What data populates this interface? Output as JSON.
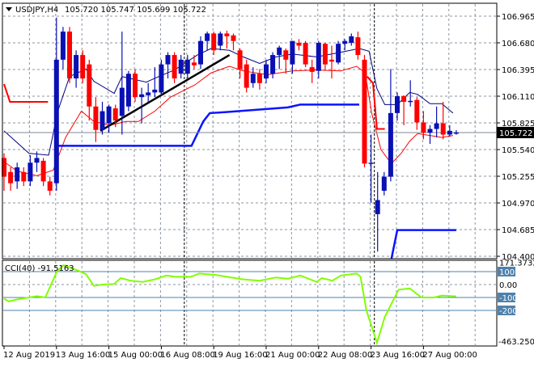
{
  "chart_data": {
    "type": "candlestick",
    "symbol_header": "USDJPY,H4",
    "ohlc_header": "105.720 105.747 105.699 105.722",
    "current_price": "105.722",
    "colors": {
      "bull": "#0a10b4",
      "bear": "#ff0000",
      "ma_upper": "#00007f",
      "ma_lower": "#ff0000",
      "support": "#0a14ff",
      "trendline": "#000000",
      "cci": "#80ff00",
      "level_box": "#4f81ad"
    },
    "price_axis": {
      "ticks": [
        "106.965",
        "106.680",
        "106.395",
        "106.110",
        "105.825",
        "105.540",
        "105.255",
        "104.970",
        "104.685",
        "104.400"
      ],
      "range": [
        104.37,
        107.1
      ]
    },
    "time_axis": {
      "ticks": [
        {
          "label": "12 Aug 2019",
          "bar": 0
        },
        {
          "label": "13 Aug 16:00",
          "bar": 8
        },
        {
          "label": "15 Aug 00:00",
          "bar": 16
        },
        {
          "label": "16 Aug 08:00",
          "bar": 24
        },
        {
          "label": "19 Aug 16:00",
          "bar": 32
        },
        {
          "label": "21 Aug 00:00",
          "bar": 40
        },
        {
          "label": "22 Aug 08:00",
          "bar": 48
        },
        {
          "label": "23 Aug 16:00",
          "bar": 56
        },
        {
          "label": "27 Aug 00:00",
          "bar": 64
        }
      ],
      "separators": [
        28,
        57
      ]
    },
    "candles": [
      [
        105.45,
        105.5,
        105.1,
        105.25
      ],
      [
        105.3,
        105.35,
        105.1,
        105.18
      ],
      [
        105.2,
        105.4,
        105.12,
        105.35
      ],
      [
        105.3,
        105.35,
        105.15,
        105.2
      ],
      [
        105.2,
        105.48,
        105.15,
        105.4
      ],
      [
        105.4,
        105.52,
        105.3,
        105.45
      ],
      [
        105.42,
        105.45,
        105.15,
        105.2
      ],
      [
        105.2,
        105.25,
        105.05,
        105.1
      ],
      [
        105.18,
        106.95,
        105.1,
        106.5
      ],
      [
        106.5,
        106.85,
        106.4,
        106.8
      ],
      [
        106.8,
        106.85,
        106.25,
        106.3
      ],
      [
        106.3,
        106.6,
        106.2,
        106.55
      ],
      [
        106.55,
        106.6,
        106.25,
        106.3
      ],
      [
        106.45,
        106.5,
        105.85,
        106.0
      ],
      [
        106.0,
        106.1,
        105.62,
        105.75
      ],
      [
        105.75,
        106.05,
        105.7,
        105.95
      ],
      [
        105.82,
        106.02,
        105.72,
        106.0
      ],
      [
        105.98,
        106.02,
        105.78,
        105.85
      ],
      [
        105.9,
        106.8,
        105.7,
        106.2
      ],
      [
        106.0,
        106.38,
        105.95,
        106.35
      ],
      [
        106.35,
        106.4,
        106.05,
        106.1
      ],
      [
        106.1,
        106.2,
        105.82,
        106.13
      ],
      [
        106.12,
        106.25,
        106.05,
        106.15
      ],
      [
        106.15,
        106.42,
        106.1,
        106.18
      ],
      [
        106.15,
        106.5,
        106.12,
        106.45
      ],
      [
        106.45,
        106.58,
        106.3,
        106.55
      ],
      [
        106.55,
        106.58,
        106.25,
        106.3
      ],
      [
        106.35,
        106.55,
        106.3,
        106.5
      ],
      [
        106.35,
        106.55,
        106.3,
        106.5
      ],
      [
        106.47,
        106.55,
        106.4,
        106.44
      ],
      [
        106.45,
        106.75,
        106.4,
        106.7
      ],
      [
        106.7,
        106.8,
        106.6,
        106.78
      ],
      [
        106.78,
        106.8,
        106.55,
        106.6
      ],
      [
        106.65,
        106.8,
        106.6,
        106.78
      ],
      [
        106.78,
        106.81,
        106.62,
        106.75
      ],
      [
        106.76,
        106.78,
        106.6,
        106.7
      ],
      [
        106.6,
        106.62,
        106.3,
        106.4
      ],
      [
        106.45,
        106.5,
        106.15,
        106.2
      ],
      [
        106.25,
        106.42,
        106.2,
        106.35
      ],
      [
        106.35,
        106.4,
        106.18,
        106.25
      ],
      [
        106.3,
        106.5,
        106.25,
        106.45
      ],
      [
        106.35,
        106.58,
        106.3,
        106.55
      ],
      [
        106.55,
        106.65,
        106.4,
        106.63
      ],
      [
        106.6,
        106.62,
        106.35,
        106.5
      ],
      [
        106.45,
        106.7,
        106.35,
        106.7
      ],
      [
        106.68,
        106.72,
        106.6,
        106.65
      ],
      [
        106.68,
        106.7,
        106.42,
        106.45
      ],
      [
        106.42,
        106.5,
        106.25,
        106.37
      ],
      [
        106.38,
        106.7,
        106.3,
        106.68
      ],
      [
        106.67,
        106.68,
        106.4,
        106.45
      ],
      [
        106.5,
        106.65,
        106.3,
        106.48
      ],
      [
        106.47,
        106.7,
        106.45,
        106.67
      ],
      [
        106.67,
        106.72,
        106.6,
        106.7
      ],
      [
        106.68,
        106.78,
        106.65,
        106.75
      ],
      [
        106.74,
        106.8,
        106.5,
        106.55
      ],
      [
        106.5,
        106.55,
        105.35,
        105.39
      ],
      [
        105.4,
        105.7,
        104.97,
        105.4
      ],
      [
        104.85,
        105.3,
        104.45,
        105.0
      ],
      [
        105.1,
        105.3,
        105.05,
        105.25
      ],
      [
        105.25,
        106.4,
        105.2,
        105.93
      ],
      [
        105.93,
        106.15,
        105.85,
        106.11
      ],
      [
        106.11,
        106.12,
        105.8,
        106.05
      ],
      [
        106.05,
        106.28,
        106.0,
        106.06
      ],
      [
        106.07,
        106.1,
        105.75,
        105.83
      ],
      [
        105.83,
        105.95,
        105.65,
        105.72
      ],
      [
        105.72,
        105.8,
        105.6,
        105.76
      ],
      [
        105.76,
        106.0,
        105.67,
        105.82
      ],
      [
        105.82,
        106.05,
        105.65,
        105.7
      ],
      [
        105.7,
        105.8,
        105.68,
        105.74
      ],
      [
        105.722,
        105.747,
        105.699,
        105.722
      ]
    ],
    "ma_upper": [
      [
        0,
        105.74
      ],
      [
        3.8,
        105.5
      ],
      [
        6.8,
        105.48
      ],
      [
        7.5,
        105.71
      ],
      [
        8.1,
        105.93
      ],
      [
        10,
        106.32
      ],
      [
        12.5,
        106.4
      ],
      [
        13.7,
        106.27
      ],
      [
        16.8,
        106.14
      ],
      [
        18,
        106.32
      ],
      [
        19.9,
        106.29
      ],
      [
        21.7,
        106.26
      ],
      [
        23.6,
        106.32
      ],
      [
        26,
        106.39
      ],
      [
        29.5,
        106.55
      ],
      [
        31.6,
        106.62
      ],
      [
        34.4,
        106.6
      ],
      [
        36.5,
        106.53
      ],
      [
        39,
        106.46
      ],
      [
        41.5,
        106.53
      ],
      [
        44,
        106.56
      ],
      [
        47.7,
        106.53
      ],
      [
        51.4,
        106.58
      ],
      [
        54.2,
        106.62
      ],
      [
        55.7,
        106.59
      ],
      [
        56.9,
        106.19
      ],
      [
        58.1,
        106.02
      ],
      [
        60,
        106.02
      ],
      [
        61.9,
        106.15
      ],
      [
        63.1,
        106.13
      ],
      [
        65,
        106.03
      ],
      [
        66.8,
        106.03
      ],
      [
        68.5,
        105.93
      ]
    ],
    "ma_lower": [
      [
        0,
        105.41
      ],
      [
        2,
        105.31
      ],
      [
        5,
        105.26
      ],
      [
        7.5,
        105.32
      ],
      [
        9.4,
        105.67
      ],
      [
        11.8,
        105.95
      ],
      [
        13.7,
        105.84
      ],
      [
        16.2,
        105.8
      ],
      [
        18.6,
        105.84
      ],
      [
        20.5,
        105.84
      ],
      [
        23,
        105.95
      ],
      [
        25.4,
        106.1
      ],
      [
        29.1,
        106.23
      ],
      [
        31.6,
        106.36
      ],
      [
        34.4,
        106.43
      ],
      [
        36.5,
        106.38
      ],
      [
        40.2,
        106.34
      ],
      [
        44,
        106.38
      ],
      [
        47.7,
        106.39
      ],
      [
        51.4,
        106.38
      ],
      [
        53.8,
        106.43
      ],
      [
        55.1,
        106.36
      ],
      [
        56.1,
        105.93
      ],
      [
        57.5,
        105.54
      ],
      [
        59.1,
        105.39
      ],
      [
        60.6,
        105.5
      ],
      [
        61.9,
        105.63
      ],
      [
        63.1,
        105.71
      ],
      [
        65,
        105.69
      ],
      [
        66.8,
        105.67
      ],
      [
        68.5,
        105.69
      ]
    ],
    "support_line": [
      [
        [
          8.1,
          105.58
        ],
        [
          28.6,
          105.58
        ],
        [
          30.4,
          105.84
        ],
        [
          31.4,
          105.93
        ],
        [
          33.7,
          105.94
        ],
        [
          43.3,
          105.99
        ],
        [
          45.2,
          106.02
        ],
        [
          54.2,
          106.02
        ]
      ],
      [
        [
          59.1,
          104.37
        ],
        [
          60,
          104.68
        ],
        [
          69,
          104.68
        ]
      ]
    ],
    "resistance_line": [
      [
        [
          0,
          106.24
        ],
        [
          0.9,
          106.05
        ],
        [
          6.7,
          106.05
        ]
      ],
      [
        [
          55.4,
          106.32
        ],
        [
          56.3,
          106.25
        ],
        [
          56.9,
          105.76
        ],
        [
          58.1,
          105.76
        ]
      ]
    ],
    "trendline": [
      [
        14.7,
        105.74
      ],
      [
        34.4,
        106.55
      ]
    ],
    "cci": {
      "label": "CCI(40) -91.5163",
      "period": 40,
      "range": [
        -463.2509,
        171.3732
      ],
      "axis_labels": {
        "max": "171.3732",
        "min": "-463.2509",
        "zero": "0.00",
        "boxed": [
          "100",
          "-100",
          "-200"
        ]
      },
      "levels": [
        100,
        -100,
        -200
      ],
      "values": [
        [
          0,
          -110
        ],
        [
          0.7,
          -130
        ],
        [
          2,
          -115
        ],
        [
          5,
          -90
        ],
        [
          6.3,
          -100
        ],
        [
          8.1,
          105
        ],
        [
          9.1,
          150
        ],
        [
          11.2,
          110
        ],
        [
          12.5,
          80
        ],
        [
          13.7,
          -10
        ],
        [
          15,
          0
        ],
        [
          16.8,
          5
        ],
        [
          17.8,
          50
        ],
        [
          19.3,
          30
        ],
        [
          21.1,
          20
        ],
        [
          23,
          40
        ],
        [
          24.8,
          70
        ],
        [
          26,
          60
        ],
        [
          28.5,
          60
        ],
        [
          29.8,
          85
        ],
        [
          32.2,
          75
        ],
        [
          36.5,
          40
        ],
        [
          39,
          30
        ],
        [
          41.5,
          55
        ],
        [
          43.3,
          45
        ],
        [
          45.2,
          70
        ],
        [
          47.7,
          20
        ],
        [
          48.5,
          50
        ],
        [
          50.1,
          30
        ],
        [
          51.4,
          70
        ],
        [
          53.8,
          85
        ],
        [
          54.4,
          60
        ],
        [
          55.3,
          -200
        ],
        [
          56.9,
          -450
        ],
        [
          58.1,
          -250
        ],
        [
          60.2,
          -40
        ],
        [
          61.9,
          -30
        ],
        [
          63.7,
          -100
        ],
        [
          65.6,
          -100
        ],
        [
          66.8,
          -85
        ],
        [
          69,
          -91.5
        ]
      ]
    }
  }
}
